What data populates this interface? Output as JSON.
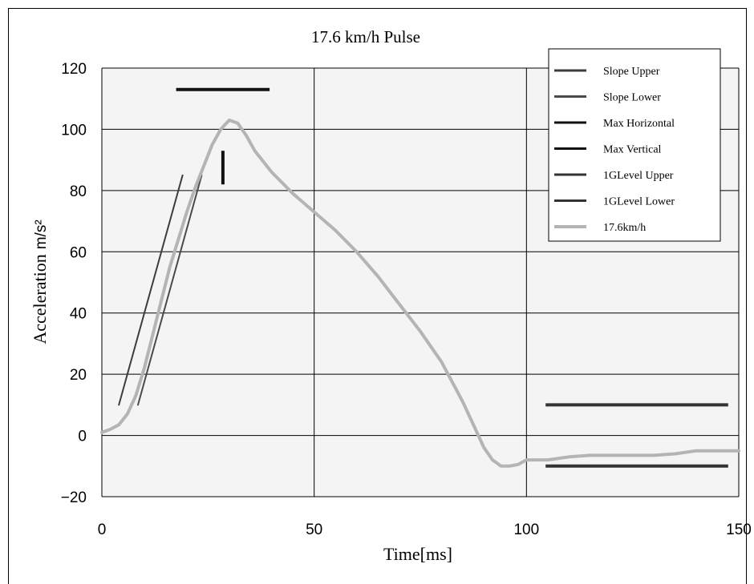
{
  "chart_data": {
    "type": "line",
    "title": "17.6 km/h Pulse",
    "xlabel": "Time[ms]",
    "ylabel": "Acceleration",
    "ylabel_unit": "m/s²",
    "xlim": [
      0,
      150
    ],
    "ylim": [
      -20,
      120
    ],
    "xticks": [
      0,
      50,
      100,
      150
    ],
    "yticks": [
      -20,
      0,
      20,
      40,
      60,
      80,
      100,
      120
    ],
    "grid": true,
    "legend_position": "top-right",
    "series": [
      {
        "name": "Slope Upper",
        "color": "#3c3c3c",
        "points": [
          [
            4,
            10
          ],
          [
            19,
            85
          ]
        ]
      },
      {
        "name": "Slope Lower",
        "color": "#4a4a4a",
        "points": [
          [
            8.5,
            10
          ],
          [
            23.5,
            85
          ]
        ]
      },
      {
        "name": "Max Horizontal",
        "color": "#111111",
        "points": [
          [
            17.5,
            113
          ],
          [
            39.5,
            113
          ]
        ]
      },
      {
        "name": "Max Vertical",
        "color": "#111111",
        "points": [
          [
            28.5,
            82
          ],
          [
            28.5,
            93
          ]
        ]
      },
      {
        "name": "1GLevel Upper",
        "color": "#333333",
        "points": [
          [
            104.5,
            10
          ],
          [
            147.5,
            10
          ]
        ]
      },
      {
        "name": "1GLevel Lower",
        "color": "#333333",
        "points": [
          [
            104.5,
            -10
          ],
          [
            147.5,
            -10
          ]
        ]
      },
      {
        "name": "17.6km/h",
        "color": "#b4b4b4",
        "points": [
          [
            0,
            1
          ],
          [
            2,
            2
          ],
          [
            4,
            3.5
          ],
          [
            6,
            7
          ],
          [
            8,
            13
          ],
          [
            10,
            22
          ],
          [
            12,
            33
          ],
          [
            14,
            44
          ],
          [
            16,
            55
          ],
          [
            18,
            64
          ],
          [
            20,
            73
          ],
          [
            22,
            81
          ],
          [
            24,
            88
          ],
          [
            26,
            95
          ],
          [
            28,
            100
          ],
          [
            30,
            103
          ],
          [
            32,
            102
          ],
          [
            34,
            98
          ],
          [
            36,
            93
          ],
          [
            40,
            86
          ],
          [
            45,
            79
          ],
          [
            50,
            73
          ],
          [
            55,
            67
          ],
          [
            60,
            60
          ],
          [
            65,
            52
          ],
          [
            70,
            43
          ],
          [
            75,
            34
          ],
          [
            80,
            24
          ],
          [
            85,
            11
          ],
          [
            88,
            2
          ],
          [
            90,
            -4
          ],
          [
            92,
            -8
          ],
          [
            94,
            -10
          ],
          [
            96,
            -10
          ],
          [
            98,
            -9.5
          ],
          [
            100,
            -8
          ],
          [
            105,
            -8
          ],
          [
            110,
            -7
          ],
          [
            115,
            -6.5
          ],
          [
            120,
            -6.5
          ],
          [
            125,
            -6.5
          ],
          [
            130,
            -6.5
          ],
          [
            135,
            -6
          ],
          [
            140,
            -5
          ],
          [
            145,
            -5
          ],
          [
            150,
            -5
          ]
        ]
      }
    ]
  }
}
